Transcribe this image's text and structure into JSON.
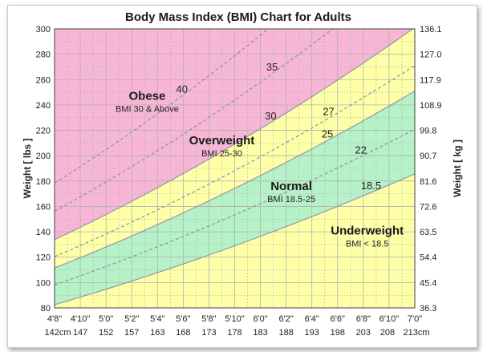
{
  "chart_data": {
    "type": "area",
    "title": "Body Mass Index (BMI) Chart for Adults",
    "ylabel_left": "Weight [ lbs ]",
    "ylabel_right": "Weight [ kg ]",
    "xlabel": "",
    "xlim_in": [
      56,
      84
    ],
    "ylim_lbs": [
      80,
      300
    ],
    "grid": true,
    "y_ticks_lbs": [
      300,
      280,
      260,
      240,
      220,
      200,
      180,
      160,
      140,
      120,
      100,
      80
    ],
    "y_ticks_kg": [
      "136.1",
      "127.0",
      "117.9",
      "108.9",
      "99.8",
      "90.7",
      "81.6",
      "72.6",
      "63.5",
      "54.4",
      "45.4",
      "36.3"
    ],
    "x_ticks": [
      {
        "in": 56,
        "ft": "4'8\"",
        "cm": "142cm"
      },
      {
        "in": 58,
        "ft": "4'10\"",
        "cm": "147"
      },
      {
        "in": 60,
        "ft": "5'0\"",
        "cm": "152"
      },
      {
        "in": 62,
        "ft": "5'2\"",
        "cm": "157"
      },
      {
        "in": 64,
        "ft": "5'4\"",
        "cm": "163"
      },
      {
        "in": 66,
        "ft": "5'6\"",
        "cm": "168"
      },
      {
        "in": 68,
        "ft": "5'8\"",
        "cm": "173"
      },
      {
        "in": 70,
        "ft": "5'10\"",
        "cm": "178"
      },
      {
        "in": 72,
        "ft": "6'0\"",
        "cm": "183"
      },
      {
        "in": 74,
        "ft": "6'2\"",
        "cm": "188"
      },
      {
        "in": 76,
        "ft": "6'4\"",
        "cm": "193"
      },
      {
        "in": 78,
        "ft": "6'6\"",
        "cm": "198"
      },
      {
        "in": 80,
        "ft": "6'8\"",
        "cm": "203"
      },
      {
        "in": 82,
        "ft": "6'10\"",
        "cm": "208"
      },
      {
        "in": 84,
        "ft": "7'0\"",
        "cm": "213cm"
      }
    ],
    "bmi_curves": [
      {
        "bmi": 18.5,
        "style": "solid",
        "label": "18.5",
        "label_at_in": 80.6
      },
      {
        "bmi": 22,
        "style": "dashed",
        "label": "22",
        "label_at_in": 79.8
      },
      {
        "bmi": 25,
        "style": "solid",
        "label": "25",
        "label_at_in": 77.2
      },
      {
        "bmi": 27,
        "style": "dashed",
        "label": "27",
        "label_at_in": 77.3
      },
      {
        "bmi": 30,
        "style": "solid",
        "label": "30",
        "label_at_in": 72.8
      },
      {
        "bmi": 35,
        "style": "dashed",
        "label": "35",
        "label_at_in": 72.9
      },
      {
        "bmi": 40,
        "style": "dashed",
        "label": "40",
        "label_at_in": 65.9
      }
    ],
    "regions": [
      {
        "name": "Obese",
        "sub": "BMI 30 & Above",
        "color": "#f7b6d6",
        "from_bmi": 30,
        "to_bmi": null,
        "label_at": [
          63.2,
          244
        ]
      },
      {
        "name": "Overweight",
        "sub": "BMI 25-30",
        "color": "#ffffa8",
        "from_bmi": 25,
        "to_bmi": 30,
        "label_at": [
          69.0,
          209
        ]
      },
      {
        "name": "Normal",
        "sub": "BMI 18.5-25",
        "color": "#b6f2c8",
        "from_bmi": 18.5,
        "to_bmi": 25,
        "label_at": [
          74.4,
          173
        ]
      },
      {
        "name": "Underweight",
        "sub": "BMI < 18.5",
        "color": "#ffffa8",
        "from_bmi": null,
        "to_bmi": 18.5,
        "label_at": [
          80.3,
          138
        ]
      }
    ],
    "colors": {
      "grid": "#b0b0b0",
      "curve": "#8a90a8",
      "frame": "#404040"
    }
  }
}
